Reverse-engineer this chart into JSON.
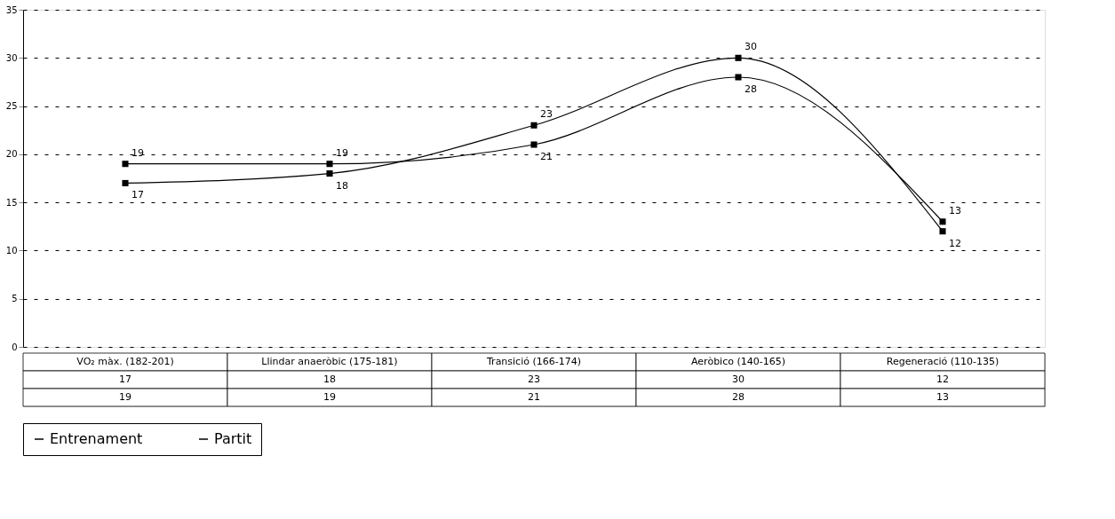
{
  "chart_data": {
    "type": "line",
    "categories": [
      "VO₂ màx. (182-201)",
      "Llindar anaeròbic  (175-181)",
      "Transició (166-174)",
      "Aeròbico (140-165)",
      "Regeneració (110-135)"
    ],
    "series": [
      {
        "name": "Entrenament",
        "color": "#000000",
        "values": [
          17,
          18,
          23,
          30,
          12
        ],
        "value_labels": [
          "17",
          "18",
          "23",
          "30",
          "12"
        ]
      },
      {
        "name": "Partit",
        "color": "#000000",
        "values": [
          19,
          19,
          21,
          28,
          13
        ],
        "value_labels": [
          "19",
          "19",
          "21",
          "28",
          "13"
        ]
      }
    ],
    "ylim": [
      0,
      35
    ],
    "yticks": [
      0,
      5,
      10,
      15,
      20,
      25,
      30,
      35
    ],
    "annotations": [
      "17",
      "18",
      "23",
      "30",
      "12",
      "19",
      "19",
      "21",
      "28",
      "13"
    ],
    "grid": "y",
    "legend": "bottom",
    "marker": "square",
    "line_style": "solid"
  }
}
